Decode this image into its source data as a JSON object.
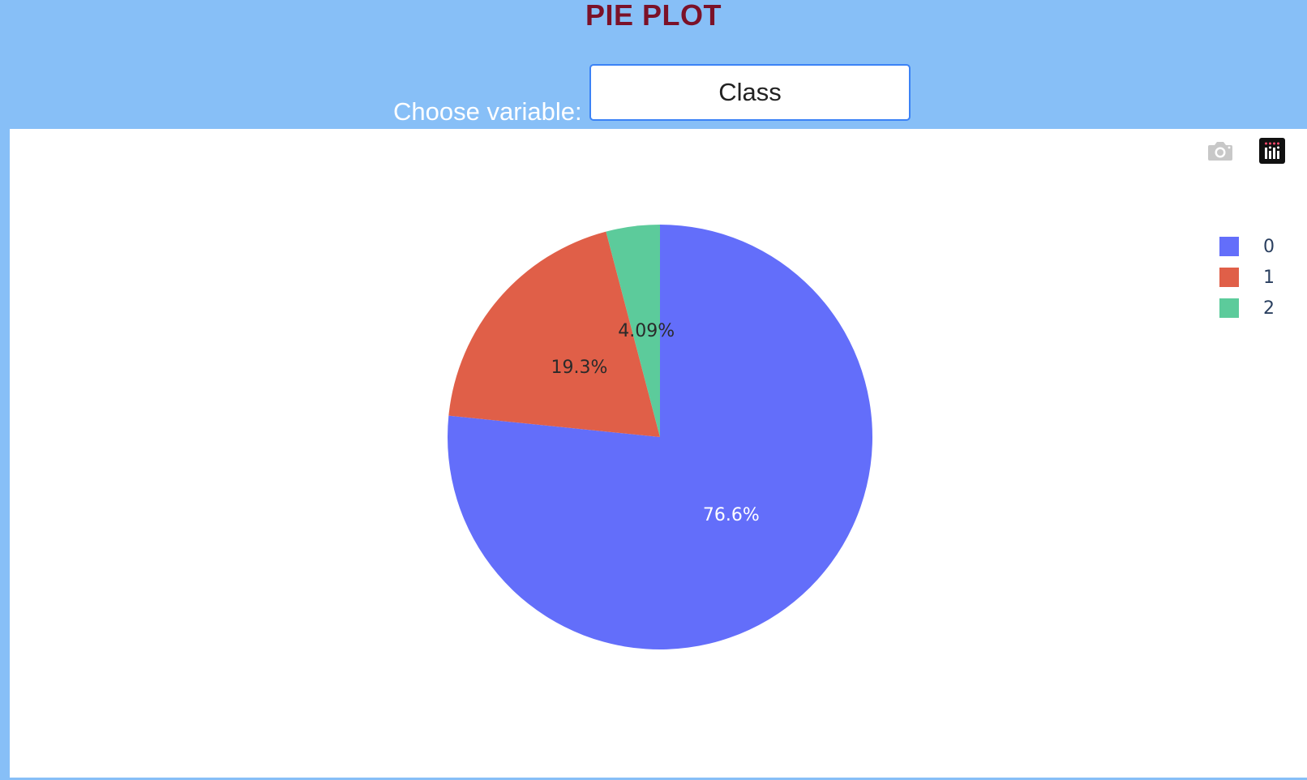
{
  "header": {
    "title": "PIE PLOT",
    "choose_label": "Choose variable:",
    "selected_variable": "Class"
  },
  "toolbar": {
    "icons": [
      "camera-icon",
      "plotly-logo-icon"
    ]
  },
  "colors": {
    "page_background": "#87bff7",
    "title": "#7b1128",
    "slice_0": "#636efa",
    "slice_1": "#ef553b",
    "slice_2": "#00cc96"
  },
  "chart_data": {
    "type": "pie",
    "labels": [
      "0",
      "1",
      "2"
    ],
    "values": [
      76.6,
      19.3,
      4.09
    ],
    "text_labels": [
      "76.6%",
      "19.3%",
      "4.09%"
    ],
    "colors": [
      "#636efa",
      "#e05f48",
      "#5ccb9b"
    ],
    "label_colors": [
      "#ffffff",
      "#2a2a2a",
      "#2a2a2a"
    ],
    "direction": "clockwise",
    "start_angle_deg": 90,
    "legend_position": "top-right"
  }
}
